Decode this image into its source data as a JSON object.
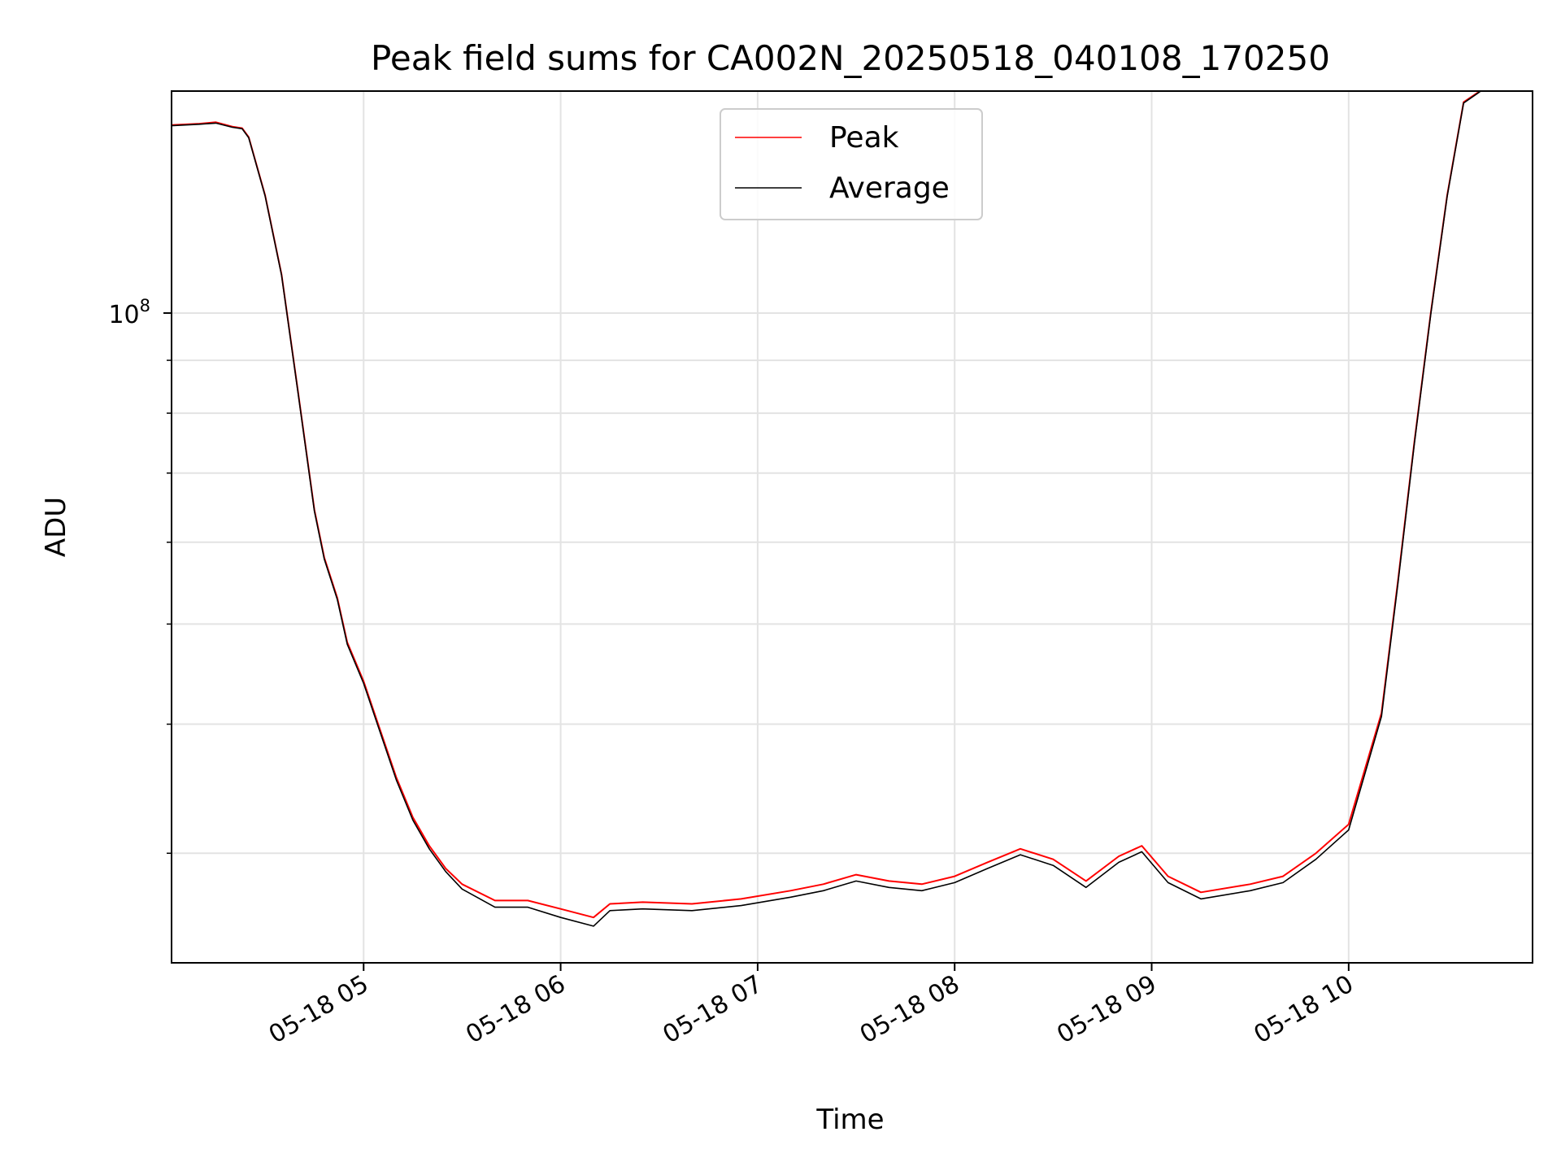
{
  "chart_data": {
    "type": "line",
    "title": "Peak field sums for CA002N_20250518_040108_170250",
    "xlabel": "Time",
    "ylabel": "ADU",
    "y_scale": "log",
    "y_major_tick": {
      "value": 100000000,
      "base": "10",
      "exponent": "8"
    },
    "ylim": [
      23500000,
      164000000
    ],
    "xlim": [
      "2025-05-18 04:01:30",
      "2025-05-18 10:56:00"
    ],
    "x_ticks": [
      {
        "value": "2025-05-18 05:00",
        "label": "05-18 05"
      },
      {
        "value": "2025-05-18 06:00",
        "label": "05-18 06"
      },
      {
        "value": "2025-05-18 07:00",
        "label": "05-18 07"
      },
      {
        "value": "2025-05-18 08:00",
        "label": "05-18 08"
      },
      {
        "value": "2025-05-18 09:00",
        "label": "05-18 09"
      },
      {
        "value": "2025-05-18 10:00",
        "label": "05-18 10"
      }
    ],
    "grid": true,
    "legend_position": "top-center",
    "series": [
      {
        "name": "Peak",
        "color": "#ff0000",
        "points": [
          [
            "2025-05-18 04:01",
            152000000
          ],
          [
            "2025-05-18 04:10",
            152500000
          ],
          [
            "2025-05-18 04:15",
            153000000
          ],
          [
            "2025-05-18 04:20",
            151500000
          ],
          [
            "2025-05-18 04:23",
            151000000
          ],
          [
            "2025-05-18 04:25",
            148000000
          ],
          [
            "2025-05-18 04:30",
            130000000
          ],
          [
            "2025-05-18 04:35",
            109000000
          ],
          [
            "2025-05-18 04:40",
            84000000
          ],
          [
            "2025-05-18 04:45",
            64500000
          ],
          [
            "2025-05-18 04:48",
            58000000
          ],
          [
            "2025-05-18 04:52",
            53000000
          ],
          [
            "2025-05-18 04:55",
            48000000
          ],
          [
            "2025-05-18 05:00",
            44000000
          ],
          [
            "2025-05-18 05:05",
            39500000
          ],
          [
            "2025-05-18 05:10",
            35500000
          ],
          [
            "2025-05-18 05:15",
            32500000
          ],
          [
            "2025-05-18 05:20",
            30500000
          ],
          [
            "2025-05-18 05:25",
            29000000
          ],
          [
            "2025-05-18 05:30",
            28000000
          ],
          [
            "2025-05-18 05:40",
            27000000
          ],
          [
            "2025-05-18 05:50",
            27000000
          ],
          [
            "2025-05-18 06:00",
            26500000
          ],
          [
            "2025-05-18 06:10",
            26000000
          ],
          [
            "2025-05-18 06:15",
            26800000
          ],
          [
            "2025-05-18 06:25",
            26900000
          ],
          [
            "2025-05-18 06:40",
            26800000
          ],
          [
            "2025-05-18 06:55",
            27100000
          ],
          [
            "2025-05-18 07:10",
            27600000
          ],
          [
            "2025-05-18 07:20",
            28000000
          ],
          [
            "2025-05-18 07:30",
            28600000
          ],
          [
            "2025-05-18 07:40",
            28200000
          ],
          [
            "2025-05-18 07:50",
            28000000
          ],
          [
            "2025-05-18 08:00",
            28500000
          ],
          [
            "2025-05-18 08:10",
            29400000
          ],
          [
            "2025-05-18 08:20",
            30300000
          ],
          [
            "2025-05-18 08:30",
            29600000
          ],
          [
            "2025-05-18 08:40",
            28200000
          ],
          [
            "2025-05-18 08:50",
            29800000
          ],
          [
            "2025-05-18 08:57",
            30500000
          ],
          [
            "2025-05-18 09:05",
            28500000
          ],
          [
            "2025-05-18 09:15",
            27500000
          ],
          [
            "2025-05-18 09:30",
            28000000
          ],
          [
            "2025-05-18 09:40",
            28500000
          ],
          [
            "2025-05-18 09:50",
            30000000
          ],
          [
            "2025-05-18 10:00",
            32000000
          ],
          [
            "2025-05-18 10:10",
            41000000
          ],
          [
            "2025-05-18 10:15",
            55000000
          ],
          [
            "2025-05-18 10:20",
            75000000
          ],
          [
            "2025-05-18 10:25",
            100000000
          ],
          [
            "2025-05-18 10:30",
            130000000
          ],
          [
            "2025-05-18 10:35",
            160000000
          ],
          [
            "2025-05-18 10:40",
            164000000
          ]
        ]
      },
      {
        "name": "Average",
        "color": "#000000",
        "points": [
          [
            "2025-05-18 04:01",
            151800000
          ],
          [
            "2025-05-18 04:10",
            152300000
          ],
          [
            "2025-05-18 04:15",
            152700000
          ],
          [
            "2025-05-18 04:20",
            151300000
          ],
          [
            "2025-05-18 04:23",
            150800000
          ],
          [
            "2025-05-18 04:25",
            147800000
          ],
          [
            "2025-05-18 04:30",
            129800000
          ],
          [
            "2025-05-18 04:35",
            108800000
          ],
          [
            "2025-05-18 04:40",
            83800000
          ],
          [
            "2025-05-18 04:45",
            64300000
          ],
          [
            "2025-05-18 04:48",
            57800000
          ],
          [
            "2025-05-18 04:52",
            52800000
          ],
          [
            "2025-05-18 04:55",
            47800000
          ],
          [
            "2025-05-18 05:00",
            43800000
          ],
          [
            "2025-05-18 05:05",
            39300000
          ],
          [
            "2025-05-18 05:10",
            35300000
          ],
          [
            "2025-05-18 05:15",
            32300000
          ],
          [
            "2025-05-18 05:20",
            30300000
          ],
          [
            "2025-05-18 05:25",
            28800000
          ],
          [
            "2025-05-18 05:30",
            27700000
          ],
          [
            "2025-05-18 05:40",
            26600000
          ],
          [
            "2025-05-18 05:50",
            26600000
          ],
          [
            "2025-05-18 06:00",
            26000000
          ],
          [
            "2025-05-18 06:10",
            25500000
          ],
          [
            "2025-05-18 06:15",
            26400000
          ],
          [
            "2025-05-18 06:25",
            26500000
          ],
          [
            "2025-05-18 06:40",
            26400000
          ],
          [
            "2025-05-18 06:55",
            26700000
          ],
          [
            "2025-05-18 07:10",
            27200000
          ],
          [
            "2025-05-18 07:20",
            27600000
          ],
          [
            "2025-05-18 07:30",
            28200000
          ],
          [
            "2025-05-18 07:40",
            27800000
          ],
          [
            "2025-05-18 07:50",
            27600000
          ],
          [
            "2025-05-18 08:00",
            28100000
          ],
          [
            "2025-05-18 08:10",
            29000000
          ],
          [
            "2025-05-18 08:20",
            29900000
          ],
          [
            "2025-05-18 08:30",
            29200000
          ],
          [
            "2025-05-18 08:40",
            27800000
          ],
          [
            "2025-05-18 08:50",
            29400000
          ],
          [
            "2025-05-18 08:57",
            30100000
          ],
          [
            "2025-05-18 09:05",
            28100000
          ],
          [
            "2025-05-18 09:15",
            27100000
          ],
          [
            "2025-05-18 09:30",
            27600000
          ],
          [
            "2025-05-18 09:40",
            28100000
          ],
          [
            "2025-05-18 09:50",
            29600000
          ],
          [
            "2025-05-18 10:00",
            31600000
          ],
          [
            "2025-05-18 10:10",
            40700000
          ],
          [
            "2025-05-18 10:15",
            54700000
          ],
          [
            "2025-05-18 10:20",
            74700000
          ],
          [
            "2025-05-18 10:25",
            99700000
          ],
          [
            "2025-05-18 10:30",
            129700000
          ],
          [
            "2025-05-18 10:35",
            159700000
          ],
          [
            "2025-05-18 10:40",
            163800000
          ]
        ]
      }
    ]
  }
}
